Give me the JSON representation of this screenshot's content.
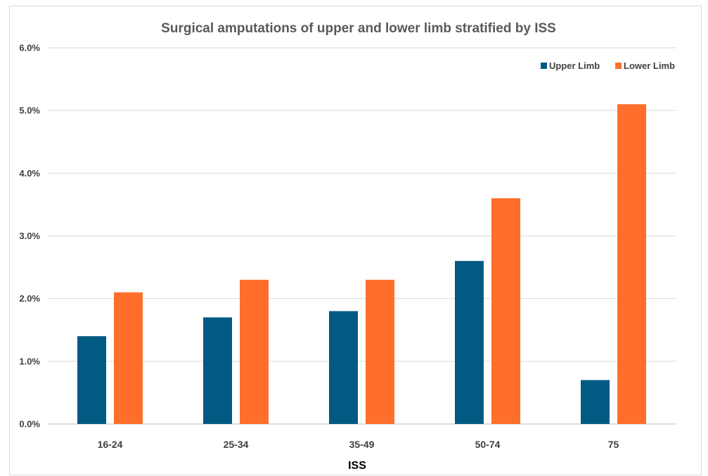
{
  "chart_data": {
    "type": "bar",
    "title": "Surgical amputations of upper and lower limb stratified by ISS",
    "xlabel": "ISS",
    "ylabel": "",
    "categories": [
      "16-24",
      "25-34",
      "35-49",
      "50-74",
      "75"
    ],
    "series": [
      {
        "name": "Upper Limb",
        "color": "#005A82",
        "values": [
          1.4,
          1.7,
          1.8,
          2.6,
          0.7
        ]
      },
      {
        "name": "Lower Limb",
        "color": "#FF6F2B",
        "values": [
          2.1,
          2.3,
          2.3,
          3.6,
          5.1
        ]
      }
    ],
    "ylim": [
      0,
      6
    ],
    "yticks": [
      "0.0%",
      "1.0%",
      "2.0%",
      "3.0%",
      "4.0%",
      "5.0%",
      "6.0%"
    ],
    "grid": true,
    "legend": "top-right",
    "gridline_color": "#d9d9d9"
  }
}
